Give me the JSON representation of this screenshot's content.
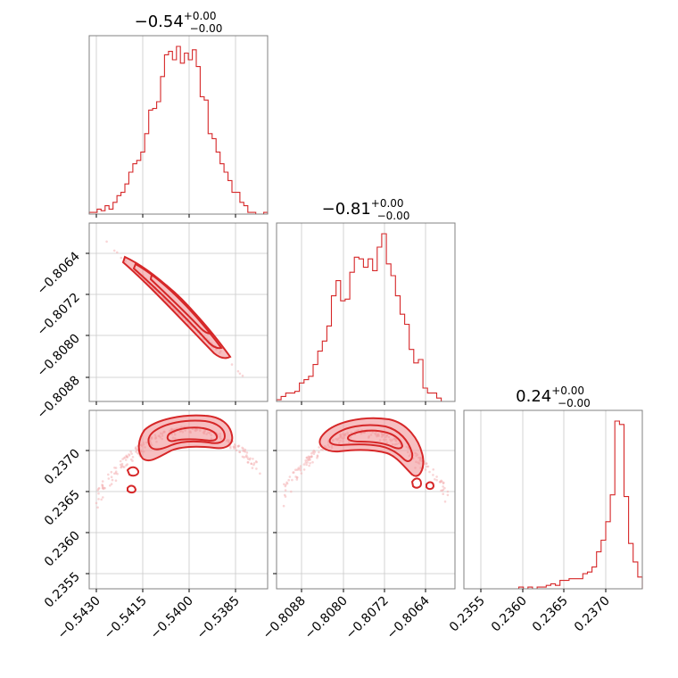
{
  "colors": {
    "accent": "#d62728",
    "frame": "#808080",
    "grid": "#c8c8c8"
  },
  "titles": [
    {
      "value": "−0.54",
      "sup": "+0.00",
      "sub": "−0.00"
    },
    {
      "value": "−0.81",
      "sup": "+0.00",
      "sub": "−0.00"
    },
    {
      "value": "0.24",
      "sup": "+0.00",
      "sub": "−0.00"
    }
  ],
  "chart_data": {
    "type": "corner",
    "parameters": [
      {
        "range": [
          -0.5433,
          -0.5378
        ],
        "ticks": [
          -0.543,
          -0.5415,
          -0.54,
          -0.5385
        ],
        "tick_labels": [
          "−0.5430",
          "−0.5415",
          "−0.5400",
          "−0.5385"
        ],
        "median": -0.5403,
        "histogram": [
          1,
          1,
          3,
          2,
          5,
          3,
          7,
          11,
          13,
          18,
          25,
          30,
          32,
          37,
          48,
          62,
          63,
          67,
          82,
          95,
          97,
          92,
          100,
          90,
          96,
          92,
          98,
          88,
          70,
          68,
          48,
          45,
          37,
          30,
          25,
          20,
          13,
          13,
          7,
          5,
          1,
          1,
          0,
          0,
          1
        ]
      },
      {
        "range": [
          -0.8091,
          -0.806
        ],
        "ticks": [
          -0.8088,
          -0.808,
          -0.8072,
          -0.8064
        ],
        "tick_labels": [
          "−0.8088",
          "−0.8080",
          "−0.8072",
          "−0.8064"
        ],
        "median": -0.8075,
        "histogram": [
          1,
          3,
          5,
          5,
          6,
          11,
          13,
          15,
          22,
          30,
          36,
          45,
          63,
          72,
          60,
          61,
          77,
          86,
          85,
          80,
          85,
          78,
          92,
          100,
          82,
          75,
          63,
          52,
          46,
          31,
          23,
          25,
          8,
          5,
          5,
          2,
          0,
          0,
          0
        ]
      },
      {
        "range": [
          0.2353,
          0.23745
        ],
        "ticks": [
          0.2355,
          0.236,
          0.2365,
          0.237
        ],
        "tick_labels": [
          "0.2355",
          "0.2360",
          "0.2365",
          "0.2370"
        ],
        "median": 0.23715,
        "histogram": [
          0,
          0,
          0,
          0,
          0,
          0,
          0,
          0,
          0,
          0,
          0,
          0,
          1,
          0,
          1,
          0,
          1,
          1,
          2,
          3,
          2,
          5,
          5,
          6,
          6,
          6,
          9,
          10,
          13,
          22,
          29,
          40,
          56,
          100,
          98,
          55,
          27,
          16,
          7
        ]
      }
    ],
    "y_tick_labels": {
      "row1": [
        "−0.8064",
        "−0.8072",
        "−0.8080",
        "−0.8088"
      ],
      "row2": [
        "0.2370",
        "0.2365",
        "0.2360",
        "0.2355"
      ]
    },
    "correlations": {
      "p0_p1": -0.999,
      "p0_p2": "arc (peak near -0.5403)",
      "p1_p2": "arc (peak near -0.8076)"
    },
    "grid": true
  }
}
